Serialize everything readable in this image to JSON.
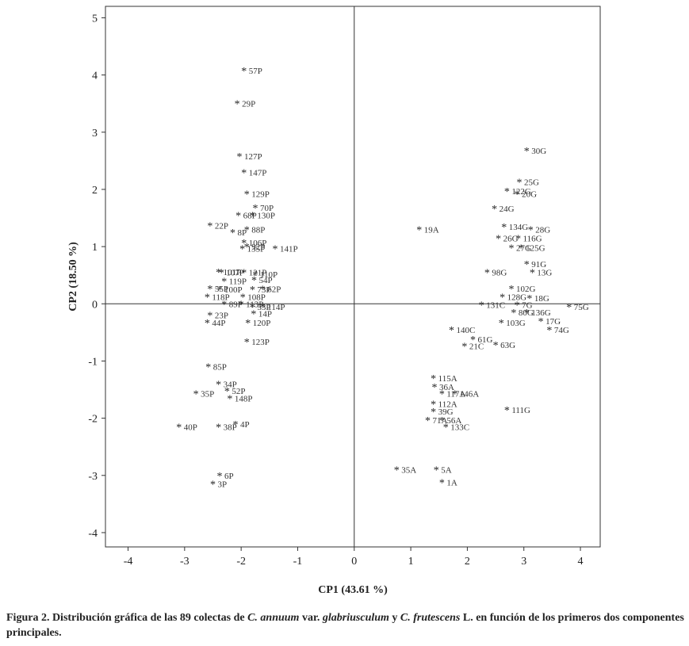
{
  "chart_data": {
    "type": "scatter",
    "title": "",
    "xlabel": "CP1 (43.61 %)",
    "ylabel": "CP2  (18.50 %)",
    "xlim": [
      -4.4,
      4.35
    ],
    "ylim": [
      -4.25,
      5.2
    ],
    "xticks": [
      -4,
      -3,
      -2,
      -1,
      0,
      1,
      2,
      3,
      4
    ],
    "yticks": [
      -4,
      -3,
      -2,
      -1,
      0,
      1,
      2,
      3,
      4,
      5
    ],
    "marker": "*",
    "points": [
      {
        "label": "57P",
        "x": -1.95,
        "y": 4.08
      },
      {
        "label": "29P",
        "x": -2.07,
        "y": 3.5
      },
      {
        "label": "127P",
        "x": -2.03,
        "y": 2.58
      },
      {
        "label": "147P",
        "x": -1.95,
        "y": 2.3
      },
      {
        "label": "129P",
        "x": -1.9,
        "y": 1.92
      },
      {
        "label": "70P",
        "x": -1.75,
        "y": 1.68
      },
      {
        "label": "68P",
        "x": -2.05,
        "y": 1.55
      },
      {
        "label": "130P",
        "x": -1.8,
        "y": 1.55
      },
      {
        "label": "22P",
        "x": -2.55,
        "y": 1.37
      },
      {
        "label": "8P",
        "x": -2.15,
        "y": 1.25
      },
      {
        "label": "88P",
        "x": -1.9,
        "y": 1.3
      },
      {
        "label": "106P",
        "x": -1.95,
        "y": 1.07
      },
      {
        "label": "135P",
        "x": -1.98,
        "y": 0.97
      },
      {
        "label": "92P",
        "x": -1.9,
        "y": 1.0
      },
      {
        "label": "141P",
        "x": -1.4,
        "y": 0.97
      },
      {
        "label": "101P",
        "x": -2.4,
        "y": 0.56
      },
      {
        "label": "107P",
        "x": -2.35,
        "y": 0.55
      },
      {
        "label": "121P",
        "x": -1.95,
        "y": 0.55
      },
      {
        "label": "110P",
        "x": -1.75,
        "y": 0.52
      },
      {
        "label": "119P",
        "x": -2.3,
        "y": 0.4
      },
      {
        "label": "54P",
        "x": -1.77,
        "y": 0.42
      },
      {
        "label": "55P",
        "x": -2.55,
        "y": 0.27
      },
      {
        "label": "100P",
        "x": -2.38,
        "y": 0.25
      },
      {
        "label": "73P",
        "x": -1.8,
        "y": 0.25
      },
      {
        "label": "62P",
        "x": -1.62,
        "y": 0.26
      },
      {
        "label": "118P",
        "x": -2.6,
        "y": 0.12
      },
      {
        "label": "108P",
        "x": -1.97,
        "y": 0.12
      },
      {
        "label": "89P",
        "x": -2.3,
        "y": 0.0
      },
      {
        "label": "113P",
        "x": -2.0,
        "y": 0.0
      },
      {
        "label": "53P",
        "x": -1.8,
        "y": -0.05
      },
      {
        "label": "114P",
        "x": -1.62,
        "y": -0.05
      },
      {
        "label": "14P",
        "x": -1.78,
        "y": -0.17
      },
      {
        "label": "23P",
        "x": -2.55,
        "y": -0.2
      },
      {
        "label": "44P",
        "x": -2.6,
        "y": -0.33
      },
      {
        "label": "120P",
        "x": -1.88,
        "y": -0.33
      },
      {
        "label": "123P",
        "x": -1.9,
        "y": -0.66
      },
      {
        "label": "85P",
        "x": -2.58,
        "y": -1.1
      },
      {
        "label": "34P",
        "x": -2.4,
        "y": -1.4
      },
      {
        "label": "52P",
        "x": -2.25,
        "y": -1.52
      },
      {
        "label": "35P",
        "x": -2.8,
        "y": -1.57
      },
      {
        "label": "148P",
        "x": -2.2,
        "y": -1.65
      },
      {
        "label": "40P",
        "x": -3.1,
        "y": -2.15
      },
      {
        "label": "38P",
        "x": -2.4,
        "y": -2.15
      },
      {
        "label": "4P",
        "x": -2.1,
        "y": -2.1
      },
      {
        "label": "6P",
        "x": -2.38,
        "y": -3.0
      },
      {
        "label": "3P",
        "x": -2.5,
        "y": -3.15
      },
      {
        "label": "19A",
        "x": 1.15,
        "y": 1.3
      },
      {
        "label": "30G",
        "x": 3.05,
        "y": 2.68
      },
      {
        "label": "25G",
        "x": 2.92,
        "y": 2.13
      },
      {
        "label": "122G",
        "x": 2.7,
        "y": 1.97
      },
      {
        "label": "20G",
        "x": 2.88,
        "y": 1.92
      },
      {
        "label": "24G",
        "x": 2.48,
        "y": 1.67
      },
      {
        "label": "134G",
        "x": 2.65,
        "y": 1.35
      },
      {
        "label": "28G",
        "x": 3.12,
        "y": 1.3
      },
      {
        "label": "26G",
        "x": 2.55,
        "y": 1.15
      },
      {
        "label": "116G",
        "x": 2.9,
        "y": 1.15
      },
      {
        "label": "27G",
        "x": 2.78,
        "y": 0.98
      },
      {
        "label": "125G",
        "x": 2.95,
        "y": 0.98
      },
      {
        "label": "91G",
        "x": 3.05,
        "y": 0.7
      },
      {
        "label": "98G",
        "x": 2.35,
        "y": 0.55
      },
      {
        "label": "13G",
        "x": 3.15,
        "y": 0.55
      },
      {
        "label": "102G",
        "x": 2.78,
        "y": 0.27
      },
      {
        "label": "128G",
        "x": 2.62,
        "y": 0.12
      },
      {
        "label": "18G",
        "x": 3.1,
        "y": 0.1
      },
      {
        "label": "131C",
        "x": 2.25,
        "y": -0.02
      },
      {
        "label": "7G",
        "x": 2.88,
        "y": -0.02
      },
      {
        "label": "75G",
        "x": 3.8,
        "y": -0.05
      },
      {
        "label": "80G",
        "x": 2.82,
        "y": -0.15
      },
      {
        "label": "136G",
        "x": 3.05,
        "y": -0.15
      },
      {
        "label": "103G",
        "x": 2.6,
        "y": -0.33
      },
      {
        "label": "17G",
        "x": 3.3,
        "y": -0.3
      },
      {
        "label": "74G",
        "x": 3.45,
        "y": -0.45
      },
      {
        "label": "140C",
        "x": 1.72,
        "y": -0.45
      },
      {
        "label": "61G",
        "x": 2.1,
        "y": -0.62
      },
      {
        "label": "21C",
        "x": 1.95,
        "y": -0.74
      },
      {
        "label": "63G",
        "x": 2.5,
        "y": -0.72
      },
      {
        "label": "115A",
        "x": 1.4,
        "y": -1.3
      },
      {
        "label": "36A",
        "x": 1.42,
        "y": -1.45
      },
      {
        "label": "117A",
        "x": 1.55,
        "y": -1.57
      },
      {
        "label": "146A",
        "x": 1.78,
        "y": -1.57
      },
      {
        "label": "112A",
        "x": 1.4,
        "y": -1.75
      },
      {
        "label": "111G",
        "x": 2.7,
        "y": -1.85
      },
      {
        "label": "39G",
        "x": 1.4,
        "y": -1.88
      },
      {
        "label": "71A",
        "x": 1.3,
        "y": -2.03
      },
      {
        "label": "56A",
        "x": 1.55,
        "y": -2.03
      },
      {
        "label": "133C",
        "x": 1.62,
        "y": -2.15
      },
      {
        "label": "35A",
        "x": 0.75,
        "y": -2.9
      },
      {
        "label": "5A",
        "x": 1.45,
        "y": -2.9
      },
      {
        "label": "1A",
        "x": 1.55,
        "y": -3.12
      }
    ]
  },
  "caption": {
    "prefix": "Figura 2. Distribución gráfica de las 89 colectas de ",
    "species1": "C. annuum",
    "middle1": " var. ",
    "variety": "glabriusculum",
    "middle2": " y ",
    "species2": "C. frutescens",
    "suffix": " L. en función de los primeros dos componentes principales."
  }
}
